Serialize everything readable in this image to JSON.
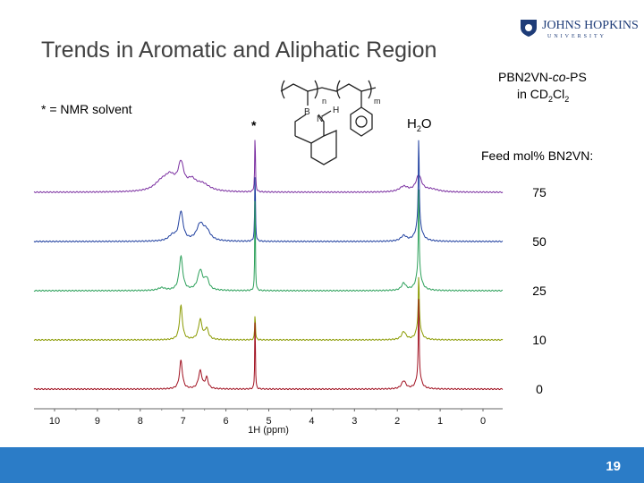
{
  "slide": {
    "title": "Trends in Aromatic and Aliphatic Region",
    "page_number": "19",
    "solvent_note": "* = NMR solvent",
    "polymer_line1": "PBN2VN-",
    "polymer_co": "co",
    "polymer_line1b": "-PS",
    "solvent_line": "in CD",
    "solvent_sub1": "2",
    "solvent_cl": "Cl",
    "solvent_sub2": "2",
    "feed_label": "Feed mol% BN2VN:",
    "logo_main": "JOHNS HOPKINS",
    "logo_sub": "UNIVERSITY",
    "asterisk": "*",
    "water_H": "H",
    "water_sub": "2",
    "water_O": "O",
    "struct_labels": {
      "B": "B",
      "N": "N",
      "H": "H",
      "n": "n",
      "m": "m"
    }
  },
  "colors": {
    "footer": "#2b7cc7"
  },
  "chart_data": {
    "type": "line",
    "xlabel": "1H (ppm)",
    "xlim": [
      10.5,
      -0.5
    ],
    "x_reversed": true,
    "ticks": [
      "10",
      "9",
      "8",
      "7",
      "6",
      "5",
      "4",
      "3",
      "2",
      "1",
      "0"
    ],
    "series": [
      {
        "name": "75",
        "color": "#7a2ea0",
        "peaks": [
          [
            7.05,
            28,
            0.08
          ],
          [
            7.3,
            14,
            0.15
          ],
          [
            7.5,
            10,
            0.2
          ],
          [
            6.8,
            10,
            0.12
          ],
          [
            6.55,
            8,
            0.2
          ],
          [
            5.32,
            65,
            0.01
          ],
          [
            1.5,
            18,
            0.08
          ],
          [
            1.85,
            6,
            0.12
          ],
          [
            1.2,
            3,
            0.2
          ]
        ]
      },
      {
        "name": "50",
        "color": "#1f3f9f",
        "peaks": [
          [
            7.05,
            32,
            0.06
          ],
          [
            7.25,
            6,
            0.1
          ],
          [
            6.6,
            18,
            0.1
          ],
          [
            6.45,
            10,
            0.1
          ],
          [
            5.32,
            80,
            0.01
          ],
          [
            1.5,
            100,
            0.012
          ],
          [
            1.5,
            20,
            0.08
          ],
          [
            1.85,
            6,
            0.08
          ]
        ]
      },
      {
        "name": "25",
        "color": "#2ca05a",
        "peaks": [
          [
            7.05,
            38,
            0.05
          ],
          [
            6.6,
            22,
            0.07
          ],
          [
            6.45,
            12,
            0.06
          ],
          [
            7.5,
            3,
            0.1
          ],
          [
            5.32,
            120,
            0.008
          ],
          [
            1.5,
            100,
            0.01
          ],
          [
            1.5,
            22,
            0.07
          ],
          [
            1.85,
            8,
            0.06
          ]
        ]
      },
      {
        "name": "10",
        "color": "#8a9a00",
        "peaks": [
          [
            7.05,
            38,
            0.04
          ],
          [
            6.6,
            22,
            0.05
          ],
          [
            6.45,
            12,
            0.05
          ],
          [
            5.32,
            30,
            0.01
          ],
          [
            1.5,
            55,
            0.012
          ],
          [
            1.5,
            18,
            0.06
          ],
          [
            1.85,
            9,
            0.06
          ]
        ]
      },
      {
        "name": "0",
        "color": "#a01020",
        "peaks": [
          [
            7.05,
            32,
            0.04
          ],
          [
            6.6,
            20,
            0.05
          ],
          [
            6.45,
            12,
            0.04
          ],
          [
            5.32,
            90,
            0.008
          ],
          [
            1.5,
            90,
            0.01
          ],
          [
            1.5,
            18,
            0.06
          ],
          [
            1.85,
            9,
            0.06
          ]
        ]
      }
    ]
  }
}
